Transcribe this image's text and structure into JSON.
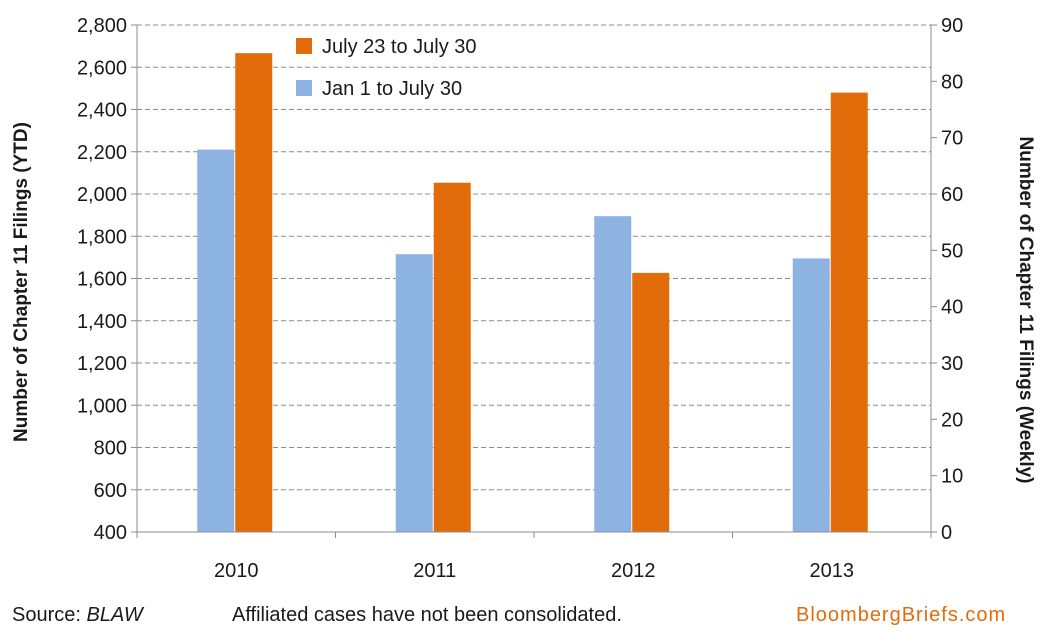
{
  "chart_data": {
    "type": "bar",
    "categories": [
      "2010",
      "2011",
      "2012",
      "2013"
    ],
    "series": [
      {
        "name": "Jan 1 to July 30",
        "axis": "left",
        "color": "#8db3e2",
        "values": [
          2210,
          1715,
          1895,
          1695
        ]
      },
      {
        "name": "July 23 to July 30",
        "axis": "right",
        "color": "#e36c0a",
        "values": [
          85,
          62,
          46,
          78
        ]
      }
    ],
    "y_left": {
      "label": "Number of Chapter 11 Filings  (YTD)",
      "ylim": [
        400,
        2800
      ],
      "ticks": [
        "400",
        "600",
        "800",
        "1,000",
        "1,200",
        "1,400",
        "1,600",
        "1,800",
        "2,000",
        "2,200",
        "2,400",
        "2,600",
        "2,800"
      ]
    },
    "y_right": {
      "label": "Number of Chapter 11 Filings (Weekly)",
      "ylim": [
        0,
        90
      ],
      "ticks": [
        "0",
        "10",
        "20",
        "30",
        "40",
        "50",
        "60",
        "70",
        "80",
        "90"
      ]
    },
    "grid": true,
    "legend_position": "top-left inside plot",
    "legend_order": [
      "July 23 to July 30",
      "Jan 1 to July 30"
    ]
  },
  "footer": {
    "source_prefix": "Source: ",
    "source_name": "BLAW",
    "note": "Affiliated cases have not been consolidated.",
    "brand": "BloombergBriefs.com"
  }
}
